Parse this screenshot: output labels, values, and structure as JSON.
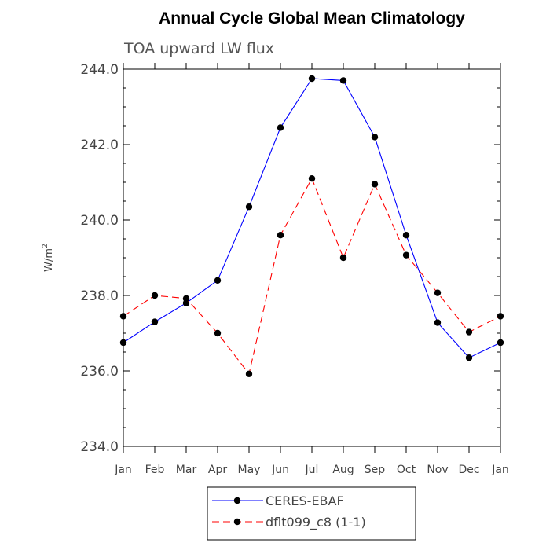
{
  "chart_data": {
    "type": "line",
    "title": "Annual Cycle Global Mean Climatology",
    "subtitle": "TOA upward LW flux",
    "ylabel": "W/m",
    "ylabel_superscript": "2",
    "ylim": [
      234.0,
      244.0
    ],
    "y_ticks": [
      "234.0",
      "236.0",
      "238.0",
      "240.0",
      "242.0",
      "244.0"
    ],
    "categories": [
      "Jan",
      "Feb",
      "Mar",
      "Apr",
      "May",
      "Jun",
      "Jul",
      "Aug",
      "Sep",
      "Oct",
      "Nov",
      "Dec",
      "Jan"
    ],
    "grid": false,
    "legend_position": "bottom",
    "series": [
      {
        "name": "CERES-EBAF",
        "color": "#0000ff",
        "dash": "solid",
        "values": [
          236.75,
          237.3,
          237.8,
          238.4,
          240.35,
          242.45,
          243.75,
          243.7,
          242.2,
          239.6,
          237.28,
          236.35,
          236.75
        ]
      },
      {
        "name": "dflt099_c8 (1-1)",
        "color": "#ff0000",
        "dash": "dashed",
        "values": [
          237.45,
          238.0,
          237.92,
          237.0,
          235.92,
          239.6,
          241.1,
          239.0,
          240.95,
          239.07,
          238.07,
          237.03,
          237.45
        ]
      }
    ]
  }
}
